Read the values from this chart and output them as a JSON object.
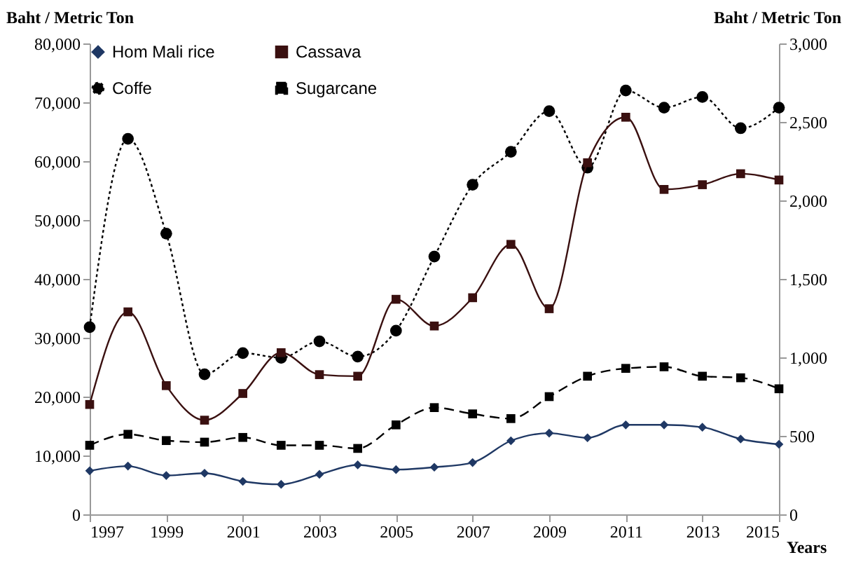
{
  "chart_data": {
    "type": "line",
    "xlabel": "Years",
    "ylabel": "Baht / Metric Ton",
    "y2label": "Baht / Metric Ton",
    "x": [
      1997,
      1998,
      1999,
      2000,
      2001,
      2002,
      2003,
      2004,
      2005,
      2006,
      2007,
      2008,
      2009,
      2010,
      2011,
      2012,
      2013,
      2014,
      2015
    ],
    "xlim": [
      1997,
      2015
    ],
    "xticks": [
      1997,
      1999,
      2001,
      2003,
      2005,
      2007,
      2009,
      2011,
      2013,
      2015
    ],
    "ylim": [
      0,
      80000
    ],
    "yticks": [
      {
        "value": 0,
        "label": "0"
      },
      {
        "value": 10000,
        "label": "10,000"
      },
      {
        "value": 20000,
        "label": "20,000"
      },
      {
        "value": 30000,
        "label": "30,000"
      },
      {
        "value": 40000,
        "label": "40,000"
      },
      {
        "value": 50000,
        "label": "50,000"
      },
      {
        "value": 60000,
        "label": "60,000"
      },
      {
        "value": 70000,
        "label": "70,000"
      },
      {
        "value": 80000,
        "label": "80,000"
      }
    ],
    "y2lim": [
      0,
      3000
    ],
    "y2ticks": [
      {
        "value": 0,
        "label": "0"
      },
      {
        "value": 500,
        "label": "500"
      },
      {
        "value": 1000,
        "label": "1,000"
      },
      {
        "value": 1500,
        "label": "1,500"
      },
      {
        "value": 2000,
        "label": "2,000"
      },
      {
        "value": 2500,
        "label": "2,500"
      },
      {
        "value": 3000,
        "label": "3,000"
      }
    ],
    "grid": false,
    "legend": "top left",
    "series": [
      {
        "name": "Hom Mali rice",
        "color": "#1f3864",
        "marker": "diamond",
        "line_style": "solid",
        "values": [
          7400,
          8200,
          6600,
          7000,
          5600,
          5100,
          6800,
          8400,
          7600,
          8000,
          8800,
          12500,
          13800,
          13000,
          15200,
          15200,
          14800,
          12800,
          11900
        ]
      },
      {
        "name": "Coffe",
        "color": "#000000",
        "marker": "circle",
        "line_style": "dotted",
        "values": [
          31800,
          63800,
          47700,
          23800,
          27400,
          26600,
          29400,
          26800,
          31200,
          43800,
          56000,
          61600,
          68500,
          58900,
          72000,
          69100,
          70900,
          65600,
          69100
        ]
      },
      {
        "name": "Cassava",
        "color": "#3a1010",
        "marker": "square",
        "line_style": "solid",
        "axis": "y2",
        "values": [
          700,
          1290,
          820,
          600,
          770,
          1030,
          890,
          880,
          1370,
          1200,
          1380,
          1720,
          1310,
          2240,
          2530,
          2070,
          2100,
          2170,
          2130
        ]
      },
      {
        "name": "Sugarcane",
        "color": "#000000",
        "marker": "square",
        "line_style": "dashed",
        "axis": "y2",
        "values": [
          440,
          510,
          470,
          460,
          490,
          440,
          440,
          420,
          570,
          680,
          640,
          610,
          750,
          880,
          930,
          940,
          880,
          870,
          800
        ]
      }
    ]
  }
}
